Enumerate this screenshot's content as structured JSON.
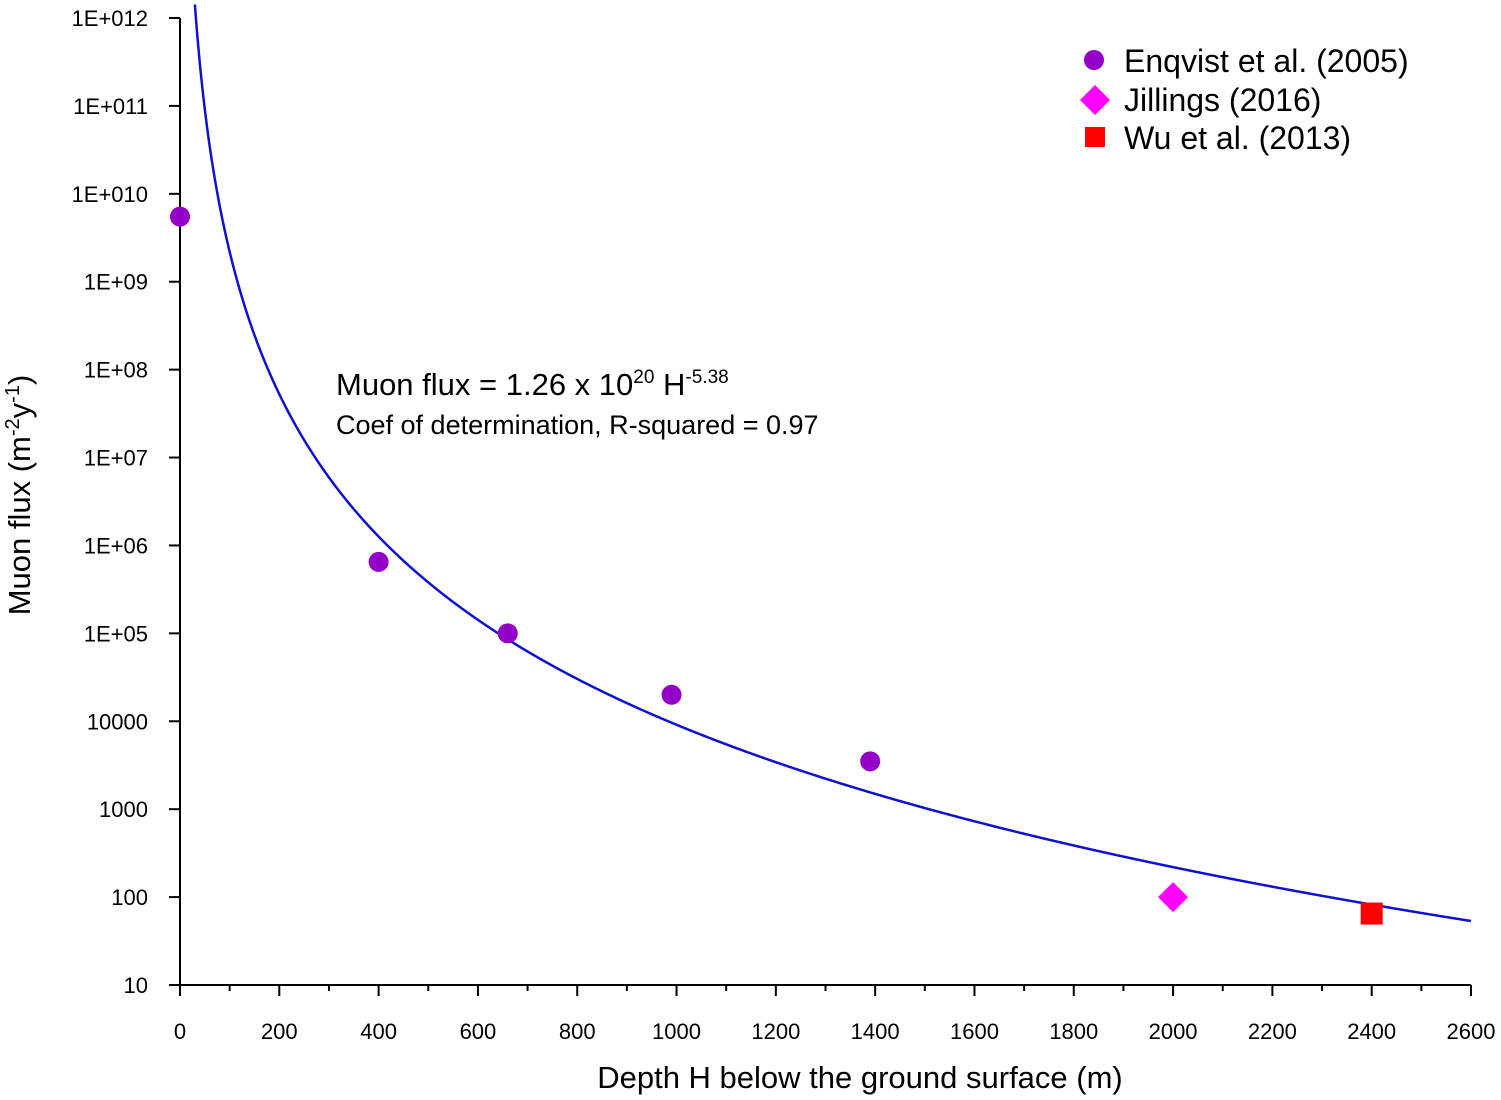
{
  "chart_data": {
    "type": "scatter",
    "xlabel": "Depth H below the ground surface (m)",
    "ylabel": {
      "prefix": "Muon flux (m",
      "exp1": "-2",
      "mid": "y",
      "exp2": "-1",
      "suffix": ")"
    },
    "xlim": [
      0,
      2600
    ],
    "ylim": [
      10,
      1000000000000
    ],
    "y_scale": "log",
    "x_ticks": [
      0,
      200,
      400,
      600,
      800,
      1000,
      1200,
      1400,
      1600,
      1800,
      2000,
      2200,
      2400,
      2600
    ],
    "x_tick_labels": [
      "0",
      "200",
      "400",
      "600",
      "800",
      "1000",
      "1200",
      "1400",
      "1600",
      "1800",
      "2000",
      "2200",
      "2400",
      "2600"
    ],
    "y_ticks": [
      10,
      100,
      1000,
      10000,
      100000,
      1000000,
      10000000,
      100000000,
      1000000000,
      10000000000,
      100000000000,
      1000000000000
    ],
    "y_tick_labels": [
      "10",
      "100",
      "1000",
      "10000",
      "1E+05",
      "1E+06",
      "1E+07",
      "1E+08",
      "1E+09",
      "1E+010",
      "1E+011",
      "1E+012"
    ],
    "grid": false,
    "legend_position": "top-right",
    "series": [
      {
        "name": "Enqvist et al. (2005)",
        "marker": "circle",
        "color": "#9400c8",
        "points": [
          [
            0,
            5500000000
          ],
          [
            400,
            650000
          ],
          [
            660,
            100000
          ],
          [
            990,
            20000
          ],
          [
            1390,
            3500
          ]
        ]
      },
      {
        "name": "Jillings (2016)",
        "marker": "diamond",
        "color": "#ff00ff",
        "points": [
          [
            2000,
            100
          ]
        ]
      },
      {
        "name": "Wu et al. (2013)",
        "marker": "square",
        "color": "#ff0000",
        "points": [
          [
            2400,
            65
          ]
        ]
      }
    ],
    "fit": {
      "type": "power",
      "coefficient": 1.26e+20,
      "exponent": -5.38,
      "color": "#1010d0",
      "x_range": [
        30,
        2600
      ]
    },
    "annotation": {
      "main_prefix": "Muon flux = 1.26 x 10",
      "main_sup1": "20",
      "main_mid": " H",
      "main_sup2": "-5.38",
      "sub": "Coef of determination, R-squared = 0.97"
    }
  }
}
